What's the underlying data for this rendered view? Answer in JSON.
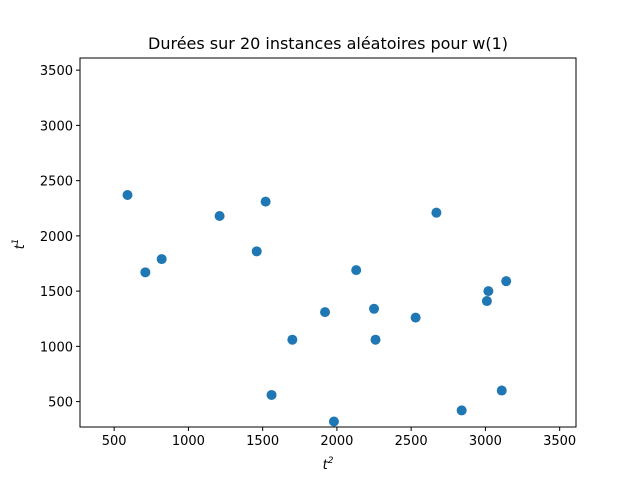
{
  "chart_data": {
    "type": "scatter",
    "title": "Durées sur 20 instances aléatoires pour w(1)",
    "xlabel": "t",
    "xlabel_sup": "2",
    "ylabel": "t",
    "ylabel_sup": "1",
    "xlim": [
      270,
      3610
    ],
    "ylim": [
      270,
      3610
    ],
    "xticks": [
      500,
      1000,
      1500,
      2000,
      2500,
      3000,
      3500
    ],
    "yticks": [
      500,
      1000,
      1500,
      2000,
      2500,
      3000,
      3500
    ],
    "xtick_labels": [
      "500",
      "1000",
      "1500",
      "2000",
      "2500",
      "3000",
      "3500"
    ],
    "ytick_labels": [
      "500",
      "1000",
      "1500",
      "2000",
      "2500",
      "3000",
      "3500"
    ],
    "grid": false,
    "marker_color": "#1f77b4",
    "points": [
      {
        "x": 590,
        "y": 2370
      },
      {
        "x": 710,
        "y": 1670
      },
      {
        "x": 820,
        "y": 1790
      },
      {
        "x": 1210,
        "y": 2180
      },
      {
        "x": 1460,
        "y": 1860
      },
      {
        "x": 1520,
        "y": 2310
      },
      {
        "x": 1560,
        "y": 560
      },
      {
        "x": 1700,
        "y": 1060
      },
      {
        "x": 1920,
        "y": 1310
      },
      {
        "x": 1980,
        "y": 320
      },
      {
        "x": 2130,
        "y": 1690
      },
      {
        "x": 2250,
        "y": 1340
      },
      {
        "x": 2260,
        "y": 1060
      },
      {
        "x": 2530,
        "y": 1260
      },
      {
        "x": 2670,
        "y": 2210
      },
      {
        "x": 2840,
        "y": 420
      },
      {
        "x": 3010,
        "y": 1410
      },
      {
        "x": 3020,
        "y": 1500
      },
      {
        "x": 3110,
        "y": 600
      },
      {
        "x": 3140,
        "y": 1590
      }
    ]
  }
}
